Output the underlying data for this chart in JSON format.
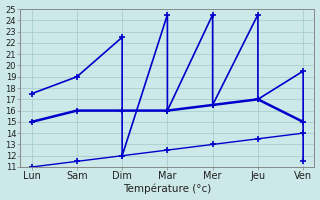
{
  "x_labels": [
    "Lun",
    "Sam",
    "Dim",
    "Mar",
    "Mer",
    "Jeu",
    "Ven"
  ],
  "x_positions": [
    0,
    1,
    2,
    3,
    4,
    5,
    6
  ],
  "background_color": "#cce8e8",
  "grid_color": "#a8cece",
  "line_color": "#0000cc",
  "xlabel": "Température (°c)",
  "ylim_min": 11,
  "ylim_max": 25,
  "yticks": [
    11,
    12,
    13,
    14,
    15,
    16,
    17,
    18,
    19,
    20,
    21,
    22,
    23,
    24,
    25
  ],
  "line1_x": [
    0,
    1,
    2,
    2,
    3,
    3,
    4,
    4,
    5,
    5,
    6,
    6
  ],
  "line1_y": [
    17.5,
    19.0,
    22.5,
    12.0,
    24.5,
    16.0,
    24.5,
    16.5,
    24.5,
    17.0,
    19.5,
    11.5
  ],
  "line2_x": [
    0,
    1,
    2,
    3,
    4,
    5,
    6
  ],
  "line2_y": [
    15.0,
    16.0,
    16.0,
    16.0,
    16.5,
    17.0,
    15.0
  ],
  "line3_x": [
    0,
    1,
    2,
    3,
    4,
    5,
    6
  ],
  "line3_y": [
    11.0,
    11.5,
    12.0,
    12.5,
    13.0,
    13.5,
    14.0
  ]
}
